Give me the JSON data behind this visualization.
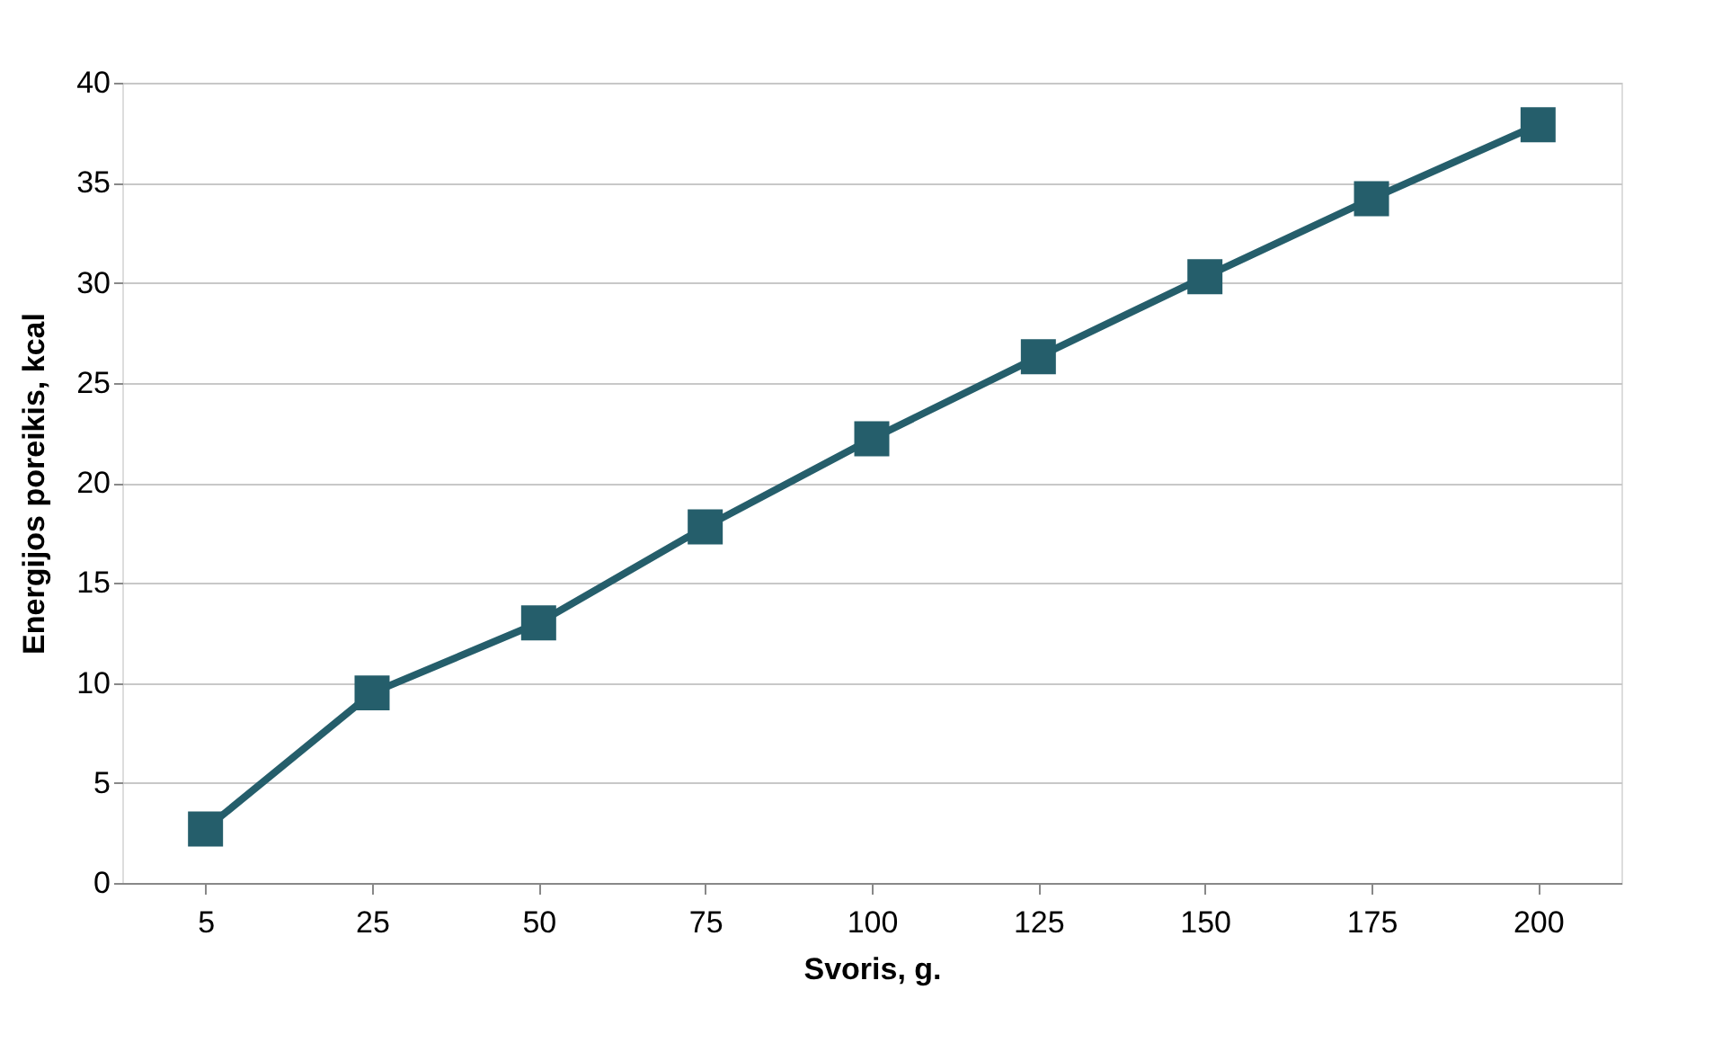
{
  "chart_data": {
    "type": "line",
    "xlabel": "Svoris, g.",
    "ylabel": "Energijos poreikis, kcal",
    "categories": [
      "5",
      "25",
      "50",
      "75",
      "100",
      "125",
      "150",
      "175",
      "200"
    ],
    "series": [
      {
        "color": "#255e6b",
        "values": [
          2.7,
          9.5,
          13.0,
          17.8,
          22.2,
          26.3,
          30.3,
          34.2,
          37.9
        ]
      }
    ],
    "ylim": [
      0,
      40
    ],
    "yticks": [
      0,
      5,
      10,
      15,
      20,
      25,
      30,
      35,
      40
    ],
    "grid": "y",
    "marker": "square",
    "line_style": "solid"
  }
}
